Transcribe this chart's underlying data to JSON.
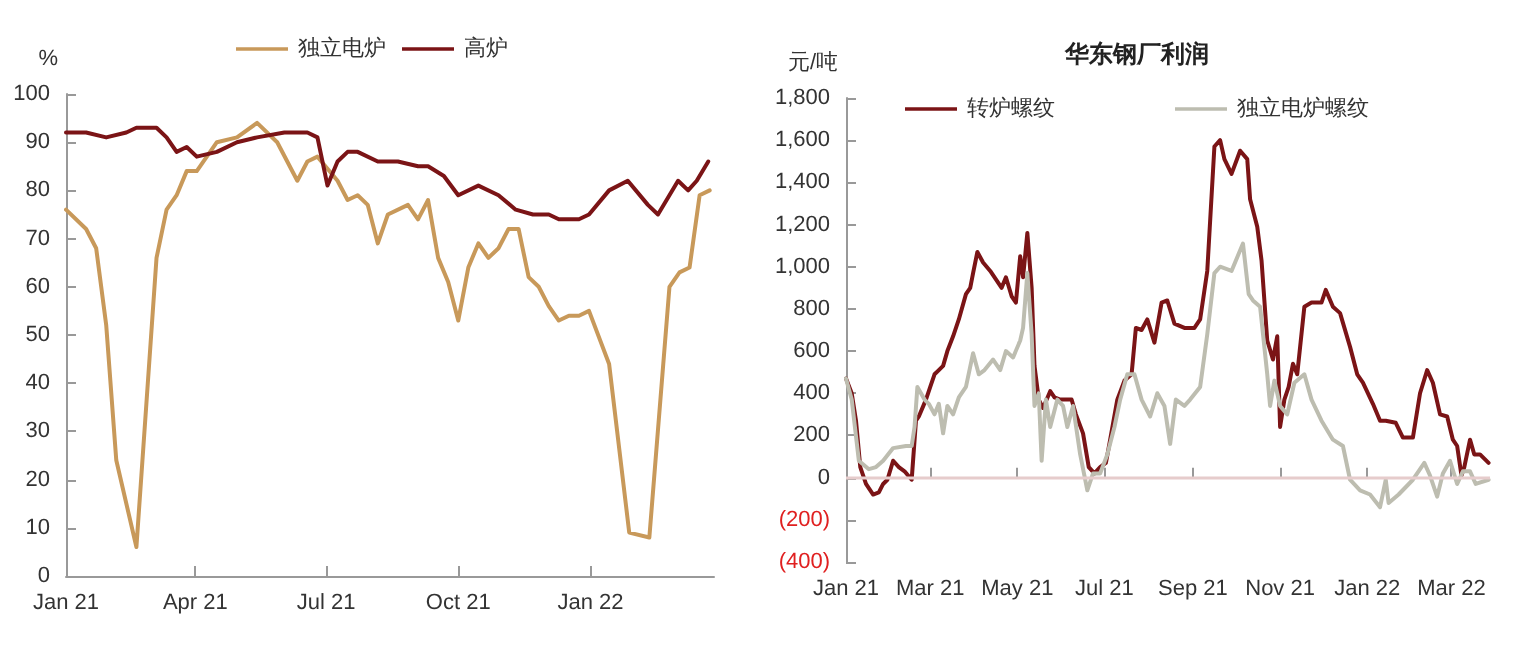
{
  "chart_data": [
    {
      "type": "line",
      "ylabel": "%",
      "xlim": [
        "2021-01-01",
        "2022-03-28"
      ],
      "xticks": [
        {
          "value": "2021-01-01",
          "label": "Jan 21"
        },
        {
          "value": "2021-04-01",
          "label": "Apr 21"
        },
        {
          "value": "2021-07-01",
          "label": "Jul 21"
        },
        {
          "value": "2021-10-01",
          "label": "Oct 21"
        },
        {
          "value": "2022-01-01",
          "label": "Jan 22"
        }
      ],
      "ylim": [
        0,
        100
      ],
      "yticks": [
        0,
        10,
        20,
        30,
        40,
        50,
        60,
        70,
        80,
        90,
        100
      ],
      "legend": "top",
      "grid": false,
      "series": [
        {
          "name": "独立电炉",
          "color": "#c8995a",
          "x": [
            "2021-01-01",
            "2021-01-15",
            "2021-01-22",
            "2021-01-29",
            "2021-02-05",
            "2021-02-19",
            "2021-03-05",
            "2021-03-12",
            "2021-03-19",
            "2021-03-26",
            "2021-04-02",
            "2021-04-16",
            "2021-04-30",
            "2021-05-14",
            "2021-05-28",
            "2021-06-11",
            "2021-06-18",
            "2021-06-25",
            "2021-07-09",
            "2021-07-16",
            "2021-07-23",
            "2021-07-30",
            "2021-08-06",
            "2021-08-13",
            "2021-08-27",
            "2021-09-03",
            "2021-09-10",
            "2021-09-17",
            "2021-09-24",
            "2021-10-01",
            "2021-10-08",
            "2021-10-15",
            "2021-10-22",
            "2021-10-29",
            "2021-11-05",
            "2021-11-12",
            "2021-11-19",
            "2021-11-26",
            "2021-12-03",
            "2021-12-10",
            "2021-12-17",
            "2021-12-24",
            "2021-12-31",
            "2022-01-14",
            "2022-01-28",
            "2022-02-11",
            "2022-02-25",
            "2022-03-04",
            "2022-03-11",
            "2022-03-18",
            "2022-03-25"
          ],
          "values": [
            76,
            72,
            68,
            52,
            24,
            6,
            66,
            76,
            79,
            84,
            84,
            90,
            91,
            94,
            90,
            82,
            86,
            87,
            82,
            78,
            79,
            77,
            69,
            75,
            77,
            74,
            78,
            66,
            61,
            53,
            64,
            69,
            66,
            68,
            72,
            72,
            62,
            60,
            56,
            53,
            54,
            54,
            55,
            44,
            9,
            8,
            60,
            63,
            64,
            79,
            80
          ]
        },
        {
          "name": "高炉",
          "color": "#7b1416",
          "x": [
            "2021-01-01",
            "2021-01-15",
            "2021-01-29",
            "2021-02-12",
            "2021-02-19",
            "2021-03-05",
            "2021-03-12",
            "2021-03-19",
            "2021-03-26",
            "2021-04-02",
            "2021-04-16",
            "2021-04-30",
            "2021-05-14",
            "2021-06-02",
            "2021-06-18",
            "2021-06-25",
            "2021-07-02",
            "2021-07-09",
            "2021-07-16",
            "2021-07-23",
            "2021-08-06",
            "2021-08-20",
            "2021-09-03",
            "2021-09-10",
            "2021-09-21",
            "2021-10-01",
            "2021-10-15",
            "2021-10-29",
            "2021-11-10",
            "2021-11-22",
            "2021-12-03",
            "2021-12-10",
            "2021-12-24",
            "2021-12-31",
            "2022-01-14",
            "2022-01-27",
            "2022-02-10",
            "2022-02-17",
            "2022-03-03",
            "2022-03-10",
            "2022-03-16",
            "2022-03-24"
          ],
          "values": [
            92,
            92,
            91,
            92,
            93,
            93,
            91,
            88,
            89,
            87,
            88,
            90,
            91,
            92,
            92,
            91,
            81,
            86,
            88,
            88,
            86,
            86,
            85,
            85,
            83,
            79,
            81,
            79,
            76,
            75,
            75,
            74,
            74,
            75,
            80,
            82,
            77,
            75,
            82,
            80,
            82,
            86
          ]
        }
      ]
    },
    {
      "type": "line",
      "title": "华东钢厂利润",
      "ylabel": "元/吨",
      "xlim": [
        "2021-01-01",
        "2022-03-28"
      ],
      "xticks": [
        {
          "value": "2021-01-01",
          "label": "Jan 21"
        },
        {
          "value": "2021-03-01",
          "label": "Mar 21"
        },
        {
          "value": "2021-05-01",
          "label": "May 21"
        },
        {
          "value": "2021-07-01",
          "label": "Jul 21"
        },
        {
          "value": "2021-09-01",
          "label": "Sep 21"
        },
        {
          "value": "2021-11-01",
          "label": "Nov 21"
        },
        {
          "value": "2022-01-01",
          "label": "Jan 22"
        },
        {
          "value": "2022-03-01",
          "label": "Mar 22"
        }
      ],
      "ylim": [
        -400,
        1800
      ],
      "yticks": [
        {
          "value": -400,
          "label": "(400)"
        },
        {
          "value": -200,
          "label": "(200)"
        },
        0,
        {
          "value": 200,
          "label": "200"
        },
        {
          "value": 400,
          "label": "400"
        },
        {
          "value": 600,
          "label": "600"
        },
        {
          "value": 800,
          "label": "800"
        },
        {
          "value": 1000,
          "label": "1,000"
        },
        {
          "value": 1200,
          "label": "1,200"
        },
        {
          "value": 1400,
          "label": "1,400"
        },
        {
          "value": 1600,
          "label": "1,600"
        },
        {
          "value": 1800,
          "label": "1,800"
        }
      ],
      "legend": "top",
      "grid": false,
      "ref_lines": [
        {
          "axis": "y",
          "value": 0,
          "color": "#e6cccc"
        }
      ],
      "series": [
        {
          "name": "转炉螺纹",
          "color": "#7b1416",
          "x": [
            "2021-01-01",
            "2021-01-05",
            "2021-01-08",
            "2021-01-11",
            "2021-01-15",
            "2021-01-20",
            "2021-01-24",
            "2021-01-27",
            "2021-01-30",
            "2021-02-03",
            "2021-02-07",
            "2021-02-11",
            "2021-02-16",
            "2021-02-19",
            "2021-02-21",
            "2021-02-26",
            "2021-03-01",
            "2021-03-04",
            "2021-03-07",
            "2021-03-10",
            "2021-03-13",
            "2021-03-17",
            "2021-03-21",
            "2021-03-26",
            "2021-03-29",
            "2021-03-31",
            "2021-04-03",
            "2021-04-07",
            "2021-04-12",
            "2021-04-16",
            "2021-04-20",
            "2021-04-23",
            "2021-04-27",
            "2021-04-30",
            "2021-05-03",
            "2021-05-05",
            "2021-05-08",
            "2021-05-11",
            "2021-05-13",
            "2021-05-16",
            "2021-05-19",
            "2021-05-24",
            "2021-05-27",
            "2021-05-31",
            "2021-06-05",
            "2021-06-08",
            "2021-06-11",
            "2021-06-16",
            "2021-06-20",
            "2021-06-24",
            "2021-06-28",
            "2021-07-02",
            "2021-07-05",
            "2021-07-10",
            "2021-07-15",
            "2021-07-20",
            "2021-07-23",
            "2021-07-27",
            "2021-07-31",
            "2021-08-05",
            "2021-08-10",
            "2021-08-14",
            "2021-08-19",
            "2021-08-26",
            "2021-09-02",
            "2021-09-06",
            "2021-09-11",
            "2021-09-16",
            "2021-09-20",
            "2021-09-23",
            "2021-09-28",
            "2021-10-04",
            "2021-10-09",
            "2021-10-11",
            "2021-10-16",
            "2021-10-19",
            "2021-10-23",
            "2021-10-27",
            "2021-10-30",
            "2021-11-01",
            "2021-11-04",
            "2021-11-07",
            "2021-11-10",
            "2021-11-13",
            "2021-11-18",
            "2021-11-23",
            "2021-11-30",
            "2021-12-03",
            "2021-12-08",
            "2021-12-13",
            "2021-12-20",
            "2021-12-25",
            "2021-12-29",
            "2022-01-05",
            "2022-01-10",
            "2022-01-14",
            "2022-01-21",
            "2022-01-26",
            "2022-02-02",
            "2022-02-07",
            "2022-02-12",
            "2022-02-16",
            "2022-02-21",
            "2022-02-26",
            "2022-03-02",
            "2022-03-05",
            "2022-03-08",
            "2022-03-10",
            "2022-03-14",
            "2022-03-17",
            "2022-03-21",
            "2022-03-27"
          ],
          "values": [
            470,
            400,
            270,
            50,
            -30,
            -80,
            -70,
            -30,
            -10,
            80,
            50,
            30,
            -10,
            270,
            290,
            370,
            430,
            490,
            510,
            530,
            600,
            670,
            750,
            870,
            900,
            970,
            1070,
            1020,
            980,
            940,
            900,
            950,
            860,
            830,
            1050,
            950,
            1160,
            900,
            530,
            370,
            330,
            410,
            380,
            370,
            370,
            370,
            300,
            210,
            50,
            20,
            50,
            70,
            180,
            370,
            460,
            490,
            710,
            700,
            750,
            640,
            830,
            840,
            730,
            710,
            710,
            750,
            980,
            1570,
            1600,
            1510,
            1440,
            1550,
            1510,
            1320,
            1190,
            1030,
            650,
            560,
            670,
            240,
            370,
            430,
            540,
            490,
            810,
            830,
            830,
            890,
            810,
            780,
            620,
            490,
            450,
            350,
            270,
            270,
            260,
            190,
            190,
            400,
            510,
            450,
            300,
            290,
            180,
            150,
            10,
            50,
            180,
            110,
            110,
            70
          ]
        },
        {
          "name": "独立电炉螺纹",
          "color": "#bdbdb0",
          "x": [
            "2021-01-01",
            "2021-01-05",
            "2021-01-10",
            "2021-01-17",
            "2021-01-22",
            "2021-01-27",
            "2021-02-03",
            "2021-02-12",
            "2021-02-16",
            "2021-02-18",
            "2021-02-20",
            "2021-02-25",
            "2021-02-28",
            "2021-03-04",
            "2021-03-07",
            "2021-03-10",
            "2021-03-13",
            "2021-03-17",
            "2021-03-21",
            "2021-03-26",
            "2021-03-31",
            "2021-04-04",
            "2021-04-08",
            "2021-04-14",
            "2021-04-19",
            "2021-04-23",
            "2021-04-28",
            "2021-05-03",
            "2021-05-05",
            "2021-05-08",
            "2021-05-11",
            "2021-05-13",
            "2021-05-16",
            "2021-05-18",
            "2021-05-21",
            "2021-05-24",
            "2021-05-29",
            "2021-06-02",
            "2021-06-05",
            "2021-06-09",
            "2021-06-14",
            "2021-06-19",
            "2021-06-23",
            "2021-06-28",
            "2021-07-03",
            "2021-07-08",
            "2021-07-12",
            "2021-07-17",
            "2021-07-22",
            "2021-07-27",
            "2021-08-02",
            "2021-08-07",
            "2021-08-12",
            "2021-08-16",
            "2021-08-20",
            "2021-08-26",
            "2021-08-30",
            "2021-09-06",
            "2021-09-11",
            "2021-09-16",
            "2021-09-20",
            "2021-09-28",
            "2021-10-06",
            "2021-10-10",
            "2021-10-13",
            "2021-10-18",
            "2021-10-23",
            "2021-10-25",
            "2021-10-28",
            "2021-11-01",
            "2021-11-06",
            "2021-11-11",
            "2021-11-18",
            "2021-11-23",
            "2021-11-30",
            "2021-12-08",
            "2021-12-15",
            "2021-12-20",
            "2021-12-27",
            "2022-01-03",
            "2022-01-10",
            "2022-01-14",
            "2022-01-16",
            "2022-01-23",
            "2022-02-02",
            "2022-02-10",
            "2022-02-14",
            "2022-02-19",
            "2022-02-23",
            "2022-02-28",
            "2022-03-05",
            "2022-03-09",
            "2022-03-14",
            "2022-03-18",
            "2022-03-27"
          ],
          "values": [
            470,
            370,
            80,
            40,
            50,
            80,
            140,
            150,
            150,
            240,
            430,
            370,
            350,
            300,
            350,
            210,
            340,
            300,
            380,
            430,
            590,
            490,
            510,
            560,
            510,
            600,
            570,
            650,
            710,
            970,
            680,
            340,
            400,
            80,
            370,
            240,
            370,
            340,
            240,
            340,
            110,
            -60,
            20,
            20,
            110,
            240,
            370,
            490,
            490,
            370,
            290,
            400,
            340,
            160,
            370,
            340,
            370,
            430,
            680,
            970,
            1000,
            980,
            1110,
            870,
            840,
            810,
            490,
            340,
            460,
            340,
            300,
            450,
            490,
            370,
            270,
            180,
            150,
            -10,
            -60,
            -80,
            -140,
            -10,
            -120,
            -80,
            -10,
            70,
            10,
            -90,
            20,
            80,
            -30,
            30,
            30,
            -30,
            -10
          ]
        }
      ]
    }
  ]
}
